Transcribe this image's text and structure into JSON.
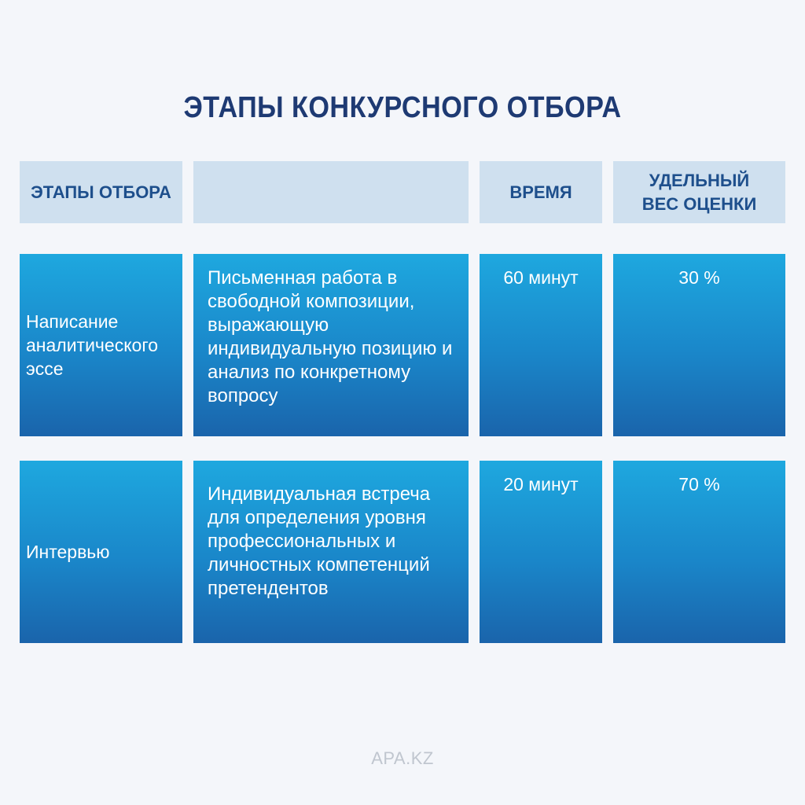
{
  "title": "ЭТАПЫ КОНКУРСНОГО ОТБОРА",
  "header": {
    "stage": "ЭТАПЫ ОТБОРА",
    "description": "",
    "time": "ВРЕМЯ",
    "weight": "УДЕЛЬНЫЙ ВЕС ОЦЕНКИ"
  },
  "rows": [
    {
      "stage": "Написание аналитического эссе",
      "description": "Письменная работа в свободной композиции, выражающую индивидуальную позицию и анализ по конкретному вопросу",
      "time": "60 минут",
      "weight": "30 %"
    },
    {
      "stage": "Интервью",
      "description": "Индивидуальная встреча для определения уровня профессиональных и личностных компетенций претендентов",
      "time": "20 минут",
      "weight": "70 %"
    }
  ],
  "footer": "APA.KZ",
  "colors": {
    "title": "#1e3a73",
    "header_bg": "#cfe0ef",
    "header_text": "#1e4f8c",
    "cell_gradient_top": "#1ea8df",
    "cell_gradient_bottom": "#1a64ab",
    "page_bg": "#f4f6fa"
  }
}
